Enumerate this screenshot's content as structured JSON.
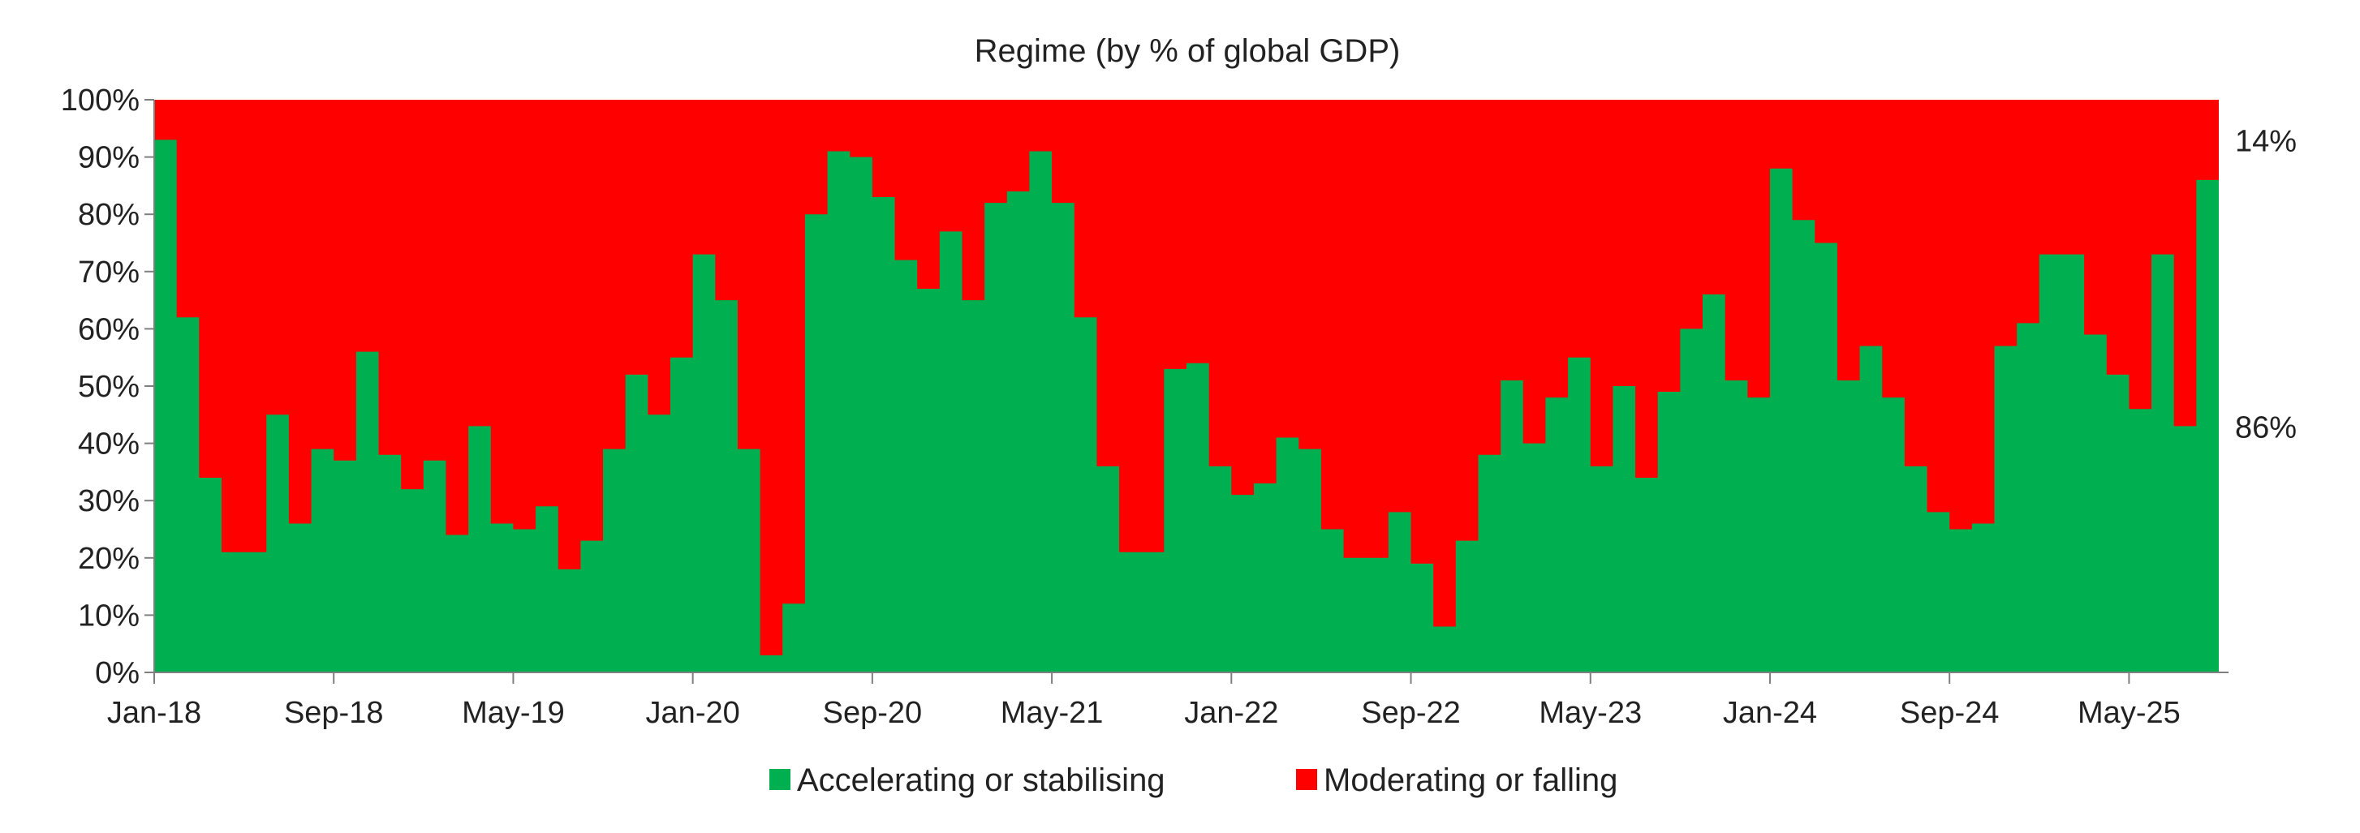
{
  "chart_data": {
    "type": "area",
    "stacked": true,
    "title": "Regime (by % of global GDP)",
    "xlabel": "",
    "ylabel": "",
    "ylim": [
      0,
      100
    ],
    "yticks": [
      "0%",
      "10%",
      "20%",
      "30%",
      "40%",
      "50%",
      "60%",
      "70%",
      "80%",
      "90%",
      "100%"
    ],
    "xtick_labels": [
      "Jan-18",
      "Sep-18",
      "May-19",
      "Jan-20",
      "Sep-20",
      "May-21",
      "Jan-22",
      "Sep-22",
      "May-23",
      "Jan-24",
      "Sep-24",
      "May-25"
    ],
    "x_start": "Jan-18",
    "x_end": "Aug-25",
    "grid": false,
    "legend_position": "bottom",
    "colors": {
      "accelerating": "#00AF50",
      "moderating": "#FF0000"
    },
    "annotations": {
      "top_label": "14%",
      "bottom_label": "86%"
    },
    "series": [
      {
        "name": "Accelerating or stabilising",
        "values": [
          93,
          62,
          34,
          21,
          21,
          45,
          26,
          39,
          37,
          56,
          38,
          32,
          37,
          24,
          43,
          26,
          25,
          29,
          18,
          23,
          39,
          52,
          45,
          55,
          73,
          65,
          39,
          3,
          12,
          80,
          91,
          90,
          83,
          72,
          67,
          77,
          65,
          82,
          84,
          91,
          82,
          62,
          36,
          21,
          21,
          53,
          54,
          36,
          31,
          33,
          41,
          39,
          25,
          20,
          20,
          28,
          19,
          8,
          23,
          38,
          51,
          40,
          48,
          55,
          36,
          50,
          34,
          49,
          60,
          66,
          51,
          48,
          88,
          79,
          75,
          51,
          57,
          48,
          36,
          28,
          25,
          26,
          57,
          61,
          73,
          73,
          59,
          52,
          46,
          73,
          43,
          86
        ]
      },
      {
        "name": "Moderating or falling",
        "values": [
          7,
          38,
          66,
          79,
          79,
          55,
          74,
          61,
          63,
          44,
          62,
          68,
          63,
          76,
          57,
          74,
          75,
          71,
          82,
          77,
          61,
          48,
          55,
          45,
          27,
          35,
          61,
          97,
          88,
          20,
          9,
          10,
          17,
          28,
          33,
          23,
          35,
          18,
          16,
          9,
          18,
          38,
          64,
          79,
          79,
          47,
          46,
          64,
          69,
          67,
          59,
          61,
          75,
          80,
          80,
          72,
          81,
          92,
          77,
          62,
          49,
          60,
          52,
          45,
          64,
          50,
          66,
          51,
          40,
          34,
          49,
          52,
          12,
          21,
          25,
          49,
          43,
          52,
          64,
          72,
          75,
          74,
          43,
          39,
          27,
          27,
          41,
          48,
          54,
          27,
          57,
          14
        ]
      }
    ]
  }
}
